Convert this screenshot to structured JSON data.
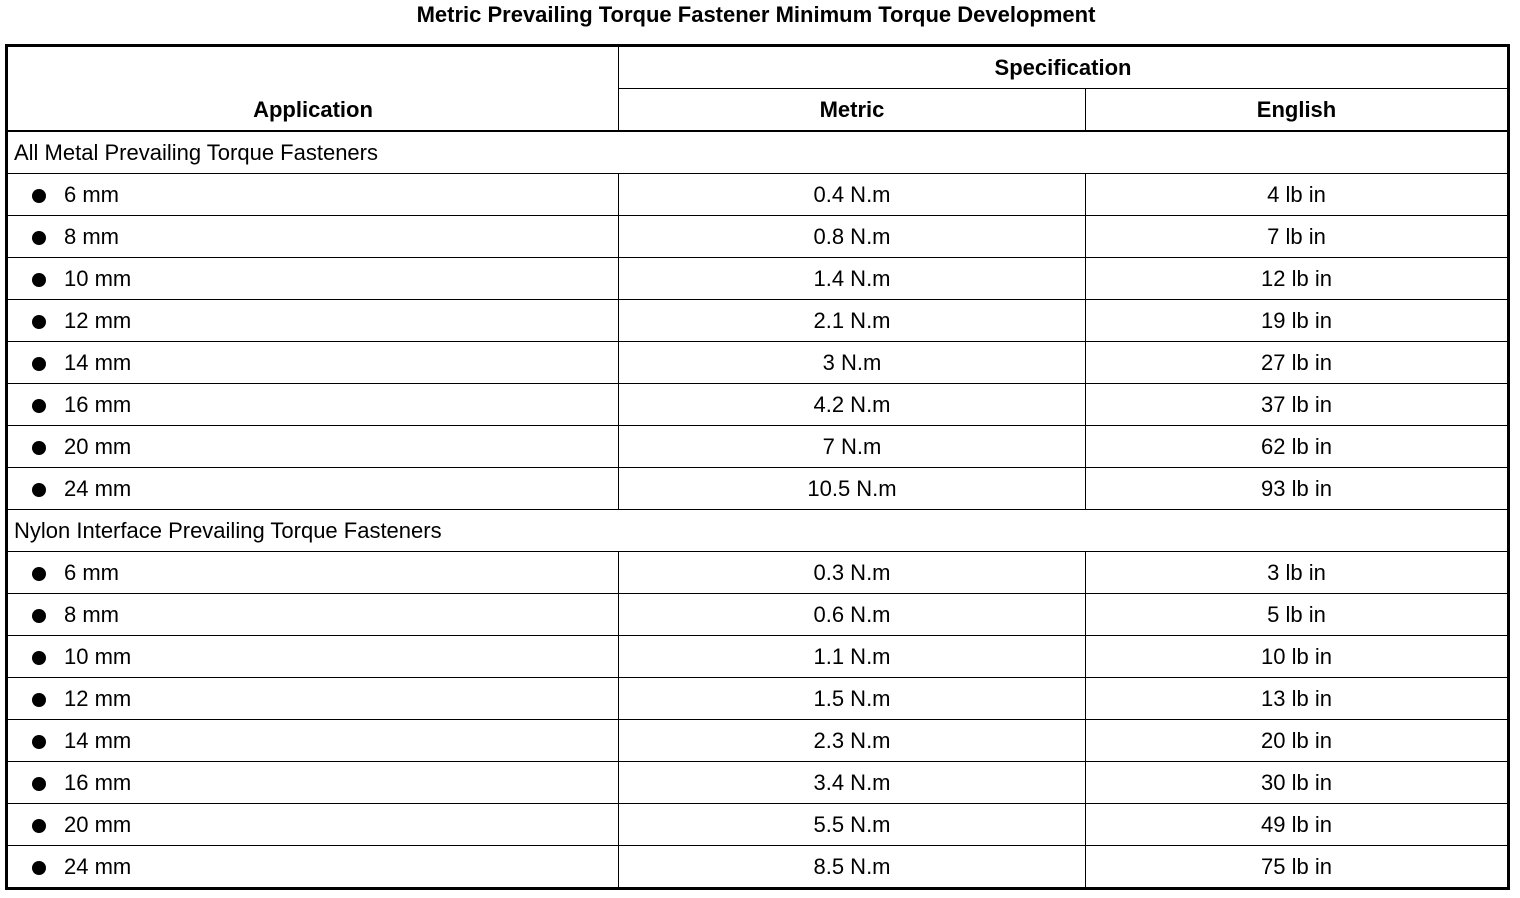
{
  "title": "Metric Prevailing Torque Fastener Minimum Torque Development",
  "headers": {
    "application": "Application",
    "specification": "Specification",
    "metric": "Metric",
    "english": "English"
  },
  "groups": [
    {
      "label": "All Metal Prevailing Torque Fasteners",
      "rows": [
        {
          "size": "6 mm",
          "metric": "0.4 N.m",
          "english": "4 lb in"
        },
        {
          "size": "8 mm",
          "metric": "0.8 N.m",
          "english": "7 lb in"
        },
        {
          "size": "10 mm",
          "metric": "1.4 N.m",
          "english": "12 lb in"
        },
        {
          "size": "12 mm",
          "metric": "2.1 N.m",
          "english": "19 lb in"
        },
        {
          "size": "14 mm",
          "metric": "3 N.m",
          "english": "27 lb in"
        },
        {
          "size": "16 mm",
          "metric": "4.2 N.m",
          "english": "37 lb in"
        },
        {
          "size": "20 mm",
          "metric": "7 N.m",
          "english": "62 lb in"
        },
        {
          "size": "24 mm",
          "metric": "10.5 N.m",
          "english": "93 lb in"
        }
      ]
    },
    {
      "label": "Nylon Interface Prevailing Torque Fasteners",
      "rows": [
        {
          "size": "6 mm",
          "metric": "0.3 N.m",
          "english": "3 lb in"
        },
        {
          "size": "8 mm",
          "metric": "0.6 N.m",
          "english": "5 lb in"
        },
        {
          "size": "10 mm",
          "metric": "1.1 N.m",
          "english": "10 lb in"
        },
        {
          "size": "12 mm",
          "metric": "1.5 N.m",
          "english": "13 lb in"
        },
        {
          "size": "14 mm",
          "metric": "2.3 N.m",
          "english": "20 lb in"
        },
        {
          "size": "16 mm",
          "metric": "3.4 N.m",
          "english": "30 lb in"
        },
        {
          "size": "20 mm",
          "metric": "5.5 N.m",
          "english": "49 lb in"
        },
        {
          "size": "24 mm",
          "metric": "8.5 N.m",
          "english": "75 lb in"
        }
      ]
    }
  ]
}
